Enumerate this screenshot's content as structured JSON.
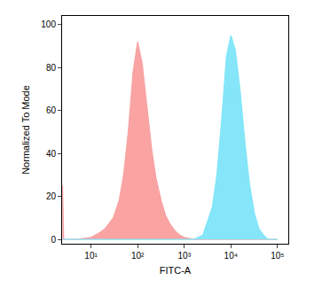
{
  "chart_data": {
    "type": "area",
    "x_label": "FITC-A",
    "y_label": "Normalized To Mode",
    "log": "x",
    "grid": false,
    "x": [
      2.45,
      2.6,
      5,
      10,
      15,
      20,
      30,
      40,
      50,
      63,
      80,
      100,
      125,
      160,
      200,
      250,
      320,
      400,
      500,
      630,
      800,
      1000,
      1600,
      2500,
      4000,
      5000,
      6300,
      8000,
      10000,
      12500,
      16000,
      20000,
      25000,
      32000,
      40000,
      50000,
      63000,
      100000
    ],
    "series": [
      {
        "color": "#f9a3a3",
        "values": [
          25,
          0,
          0,
          1,
          3,
          5,
          10,
          18,
          30,
          50,
          78,
          92,
          82,
          62,
          42,
          28,
          18,
          11,
          7,
          4,
          2,
          1,
          0,
          0,
          0,
          0,
          0,
          0,
          0,
          0,
          0,
          0,
          0,
          0,
          0,
          0,
          0,
          0
        ]
      },
      {
        "color": "#84e6f8",
        "values": [
          0,
          0,
          0,
          0,
          0,
          0,
          0,
          0,
          0,
          0,
          0,
          0,
          0,
          0,
          0,
          0,
          0,
          0,
          0,
          0,
          0,
          0,
          0,
          2,
          15,
          30,
          55,
          85,
          95,
          88,
          68,
          45,
          26,
          12,
          5,
          2,
          0,
          0
        ]
      }
    ],
    "xlim": [
      2.4,
      170000
    ],
    "xticks": [
      {
        "value": 10,
        "label": "10¹"
      },
      {
        "value": 100,
        "label": "10²"
      },
      {
        "value": 1000,
        "label": "10³"
      },
      {
        "value": 10000,
        "label": "10⁴"
      },
      {
        "value": 100000,
        "label": "10⁵"
      }
    ],
    "ylim": [
      -2,
      104
    ],
    "yticks": [
      0,
      20,
      40,
      60,
      80,
      100
    ]
  }
}
